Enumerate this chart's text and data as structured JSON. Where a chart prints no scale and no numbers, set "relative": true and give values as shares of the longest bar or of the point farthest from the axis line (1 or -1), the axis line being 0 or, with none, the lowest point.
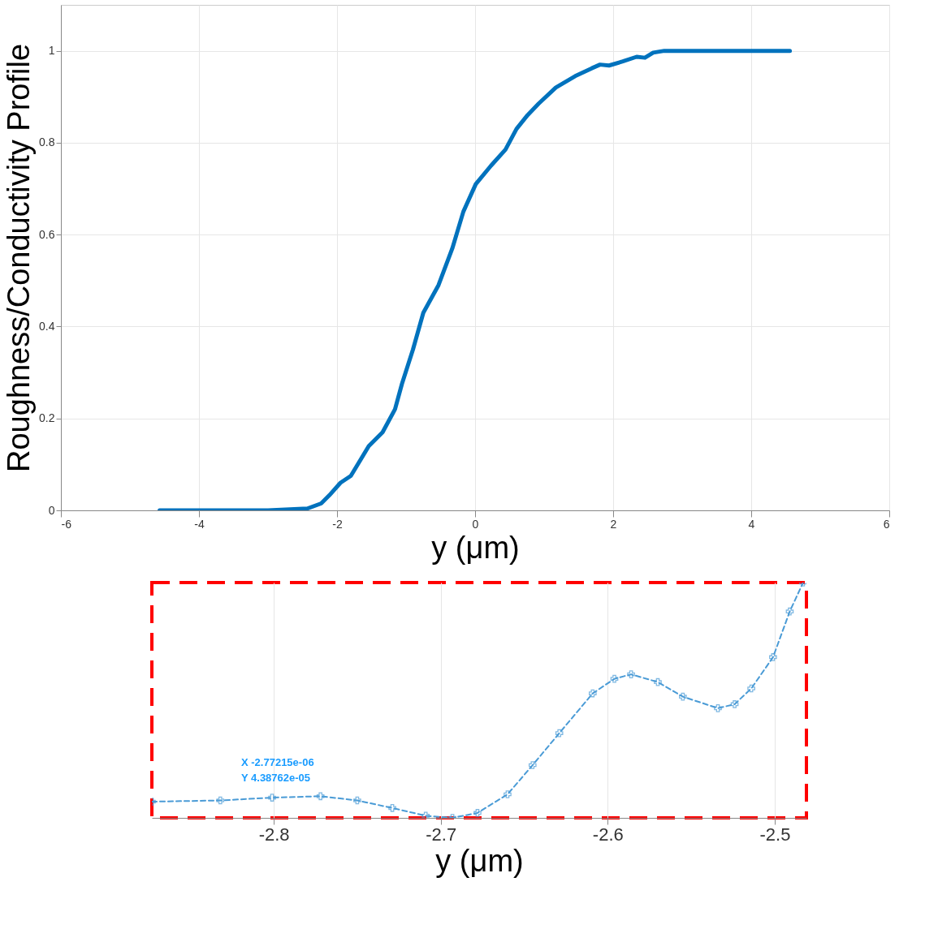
{
  "chart_data": [
    {
      "type": "line",
      "xlabel": "y (μm)",
      "ylabel": "Roughness/Conductivity Profile",
      "xlim": [
        -6,
        6
      ],
      "xticks": [
        -6,
        -4,
        -2,
        0,
        2,
        4,
        6
      ],
      "ylim": [
        0,
        1.1
      ],
      "yticks": [
        0,
        0.2,
        0.4,
        0.6,
        0.8,
        1
      ],
      "grid": true,
      "marker": "none",
      "line_style": "solid",
      "series": [
        {
          "color": "#0072bd",
          "x": [
            -4.57,
            -3.0,
            -2.43,
            -2.23,
            -2.11,
            -1.95,
            -1.8,
            -1.66,
            -1.54,
            -1.34,
            -1.16,
            -1.06,
            -0.9,
            -0.75,
            -0.53,
            -0.33,
            -0.17,
            0.01,
            0.23,
            0.44,
            0.6,
            0.76,
            0.92,
            1.17,
            1.45,
            1.69,
            1.81,
            1.94,
            2.14,
            2.34,
            2.46,
            2.58,
            2.74,
            4.56
          ],
          "values": [
            0,
            0,
            0.004,
            0.015,
            0.033,
            0.06,
            0.075,
            0.11,
            0.14,
            0.17,
            0.22,
            0.275,
            0.35,
            0.43,
            0.49,
            0.57,
            0.65,
            0.71,
            0.75,
            0.785,
            0.83,
            0.86,
            0.885,
            0.92,
            0.945,
            0.962,
            0.97,
            0.968,
            0.977,
            0.987,
            0.985,
            0.996,
            1.0,
            1.0
          ]
        }
      ]
    },
    {
      "type": "line",
      "xlabel": "y (μm)",
      "xlim": [
        -2.873,
        -2.481
      ],
      "xticks": [
        -2.8,
        -2.7,
        -2.6,
        -2.5
      ],
      "relative": true,
      "grid": true,
      "marker": "cross",
      "line_style": "dashed",
      "tick_labels": "x",
      "annotations": [
        "X -2.77215e-06",
        "Y 4.38762e-05"
      ],
      "series": [
        {
          "color": "#4a9bd6",
          "x": [
            -2.873,
            -2.832,
            -2.801,
            -2.772,
            -2.75,
            -2.729,
            -2.709,
            -2.693,
            -2.678,
            -2.66,
            -2.645,
            -2.629,
            -2.609,
            -2.596,
            -2.586,
            -2.57,
            -2.555,
            -2.534,
            -2.524,
            -2.514,
            -2.501,
            -2.491,
            -2.483
          ],
          "values": [
            0.069,
            0.074,
            0.086,
            0.092,
            0.074,
            0.042,
            0.009,
            0,
            0.021,
            0.1,
            0.224,
            0.36,
            0.529,
            0.591,
            0.61,
            0.577,
            0.515,
            0.466,
            0.483,
            0.55,
            0.683,
            0.877,
            1.0
          ]
        }
      ]
    }
  ]
}
